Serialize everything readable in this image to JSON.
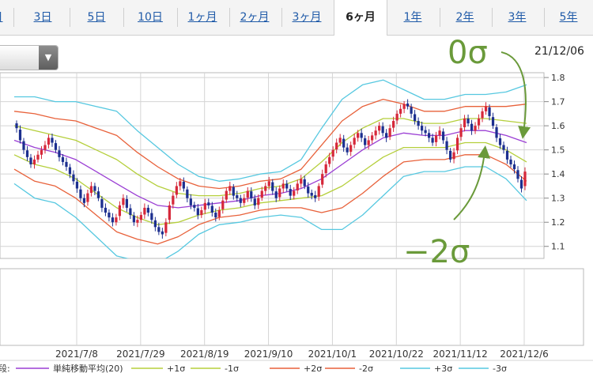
{
  "tabs": [
    {
      "label": "日",
      "active": false
    },
    {
      "label": "3日",
      "active": false
    },
    {
      "label": "5日",
      "active": false
    },
    {
      "label": "10日",
      "active": false
    },
    {
      "label": "1ヶ月",
      "active": false
    },
    {
      "label": "2ヶ月",
      "active": false
    },
    {
      "label": "3ヶ月",
      "active": false
    },
    {
      "label": "6ヶ月",
      "active": true
    },
    {
      "label": "1年",
      "active": false
    },
    {
      "label": "2年",
      "active": false
    },
    {
      "label": "3年",
      "active": false
    },
    {
      "label": "5年",
      "active": false
    }
  ],
  "date_stamp": "21/12/06",
  "chart_data": {
    "type": "candlestick",
    "ylim": [
      1.05,
      1.82
    ],
    "y_ticks": [
      "1.8",
      "1.7",
      "1.6",
      "1.5",
      "1.4",
      "1.3",
      "1.2",
      "1.1"
    ],
    "x_ticks": [
      "2021/7/8",
      "2021/7/29",
      "2021/8/19",
      "2021/9/10",
      "2021/10/1",
      "2021/10/22",
      "2021/11/12",
      "2021/12/6"
    ],
    "up_color": "#d6283a",
    "down_color": "#1c2f8f",
    "legend_prefix": "段:",
    "legend": [
      {
        "label": "単純移動平均(20)",
        "color": "#9b3fd4"
      },
      {
        "label": "+1σ",
        "color": "#b5cf3c"
      },
      {
        "label": "-1σ",
        "color": "#b5cf3c"
      },
      {
        "label": "+2σ",
        "color": "#e8613a"
      },
      {
        "label": "-2σ",
        "color": "#e8613a"
      },
      {
        "label": "+3σ",
        "color": "#56c8e0"
      },
      {
        "label": "-3σ",
        "color": "#56c8e0"
      }
    ],
    "series_colors": {
      "ma": "#9b3fd4",
      "s1": "#b5cf3c",
      "s2": "#e8613a",
      "s3": "#56c8e0"
    },
    "closes": [
      1.59,
      1.54,
      1.5,
      1.47,
      1.44,
      1.46,
      1.48,
      1.5,
      1.52,
      1.55,
      1.53,
      1.5,
      1.47,
      1.45,
      1.43,
      1.4,
      1.37,
      1.34,
      1.3,
      1.28,
      1.32,
      1.35,
      1.33,
      1.3,
      1.26,
      1.24,
      1.22,
      1.2,
      1.22,
      1.27,
      1.3,
      1.26,
      1.23,
      1.2,
      1.21,
      1.23,
      1.26,
      1.24,
      1.21,
      1.18,
      1.16,
      1.15,
      1.2,
      1.27,
      1.31,
      1.35,
      1.37,
      1.34,
      1.3,
      1.27,
      1.26,
      1.23,
      1.25,
      1.28,
      1.27,
      1.24,
      1.22,
      1.25,
      1.29,
      1.33,
      1.35,
      1.31,
      1.3,
      1.28,
      1.3,
      1.33,
      1.3,
      1.27,
      1.3,
      1.33,
      1.35,
      1.37,
      1.33,
      1.3,
      1.34,
      1.36,
      1.34,
      1.31,
      1.33,
      1.36,
      1.38,
      1.35,
      1.32,
      1.31,
      1.3,
      1.35,
      1.4,
      1.44,
      1.47,
      1.5,
      1.53,
      1.55,
      1.51,
      1.49,
      1.52,
      1.55,
      1.57,
      1.55,
      1.52,
      1.54,
      1.56,
      1.58,
      1.6,
      1.57,
      1.55,
      1.59,
      1.62,
      1.65,
      1.67,
      1.69,
      1.68,
      1.65,
      1.62,
      1.6,
      1.58,
      1.57,
      1.55,
      1.53,
      1.56,
      1.58,
      1.54,
      1.5,
      1.46,
      1.49,
      1.55,
      1.59,
      1.63,
      1.61,
      1.58,
      1.6,
      1.63,
      1.66,
      1.68,
      1.64,
      1.6,
      1.55,
      1.52,
      1.5,
      1.46,
      1.44,
      1.42,
      1.38,
      1.34,
      1.41
    ],
    "bands": {
      "x": [
        0,
        0.04,
        0.08,
        0.12,
        0.16,
        0.2,
        0.24,
        0.28,
        0.32,
        0.36,
        0.4,
        0.44,
        0.48,
        0.52,
        0.56,
        0.6,
        0.64,
        0.68,
        0.72,
        0.76,
        0.8,
        0.84,
        0.88,
        0.92,
        0.96,
        1.0
      ],
      "ma": [
        1.54,
        1.51,
        1.49,
        1.46,
        1.41,
        1.36,
        1.31,
        1.27,
        1.26,
        1.27,
        1.28,
        1.29,
        1.31,
        1.32,
        1.34,
        1.38,
        1.44,
        1.5,
        1.55,
        1.57,
        1.56,
        1.56,
        1.58,
        1.58,
        1.56,
        1.53
      ],
      "sigma": [
        0.06,
        0.07,
        0.07,
        0.08,
        0.09,
        0.1,
        0.09,
        0.08,
        0.06,
        0.04,
        0.03,
        0.03,
        0.03,
        0.03,
        0.04,
        0.07,
        0.09,
        0.09,
        0.08,
        0.06,
        0.05,
        0.05,
        0.05,
        0.05,
        0.06,
        0.08
      ]
    }
  },
  "annotations": {
    "top": "0σ",
    "bottom": "−2σ",
    "color": "#6a9a3a"
  }
}
